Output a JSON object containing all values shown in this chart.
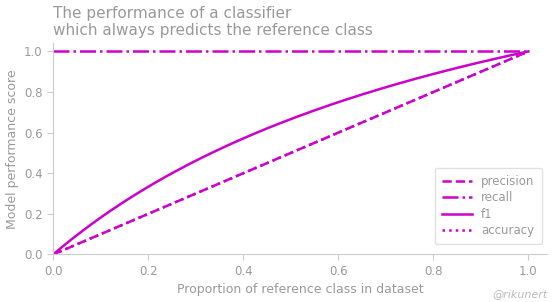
{
  "title_line1": "The performance of a classifier",
  "title_line2": "which always predicts the reference class",
  "xlabel": "Proportion of reference class in dataset",
  "ylabel": "Model performance score",
  "watermark": "@rikunert",
  "title_color": "#999999",
  "axis_label_color": "#999999",
  "tick_color": "#999999",
  "line_color": "#cc00cc",
  "spine_color": "#cccccc",
  "background_color": "#ffffff",
  "legend_labels": [
    "precision",
    "recall",
    "f1",
    "accuracy"
  ],
  "legend_styles": [
    "--",
    "-.",
    "-",
    ":"
  ],
  "xlim": [
    0.0,
    1.04
  ],
  "ylim": [
    0.0,
    1.04
  ],
  "xticks": [
    0.0,
    0.2,
    0.4,
    0.6,
    0.8,
    1.0
  ],
  "yticks": [
    0.0,
    0.2,
    0.4,
    0.6,
    0.8,
    1.0
  ],
  "figsize": [
    5.53,
    3.02
  ],
  "dpi": 100
}
